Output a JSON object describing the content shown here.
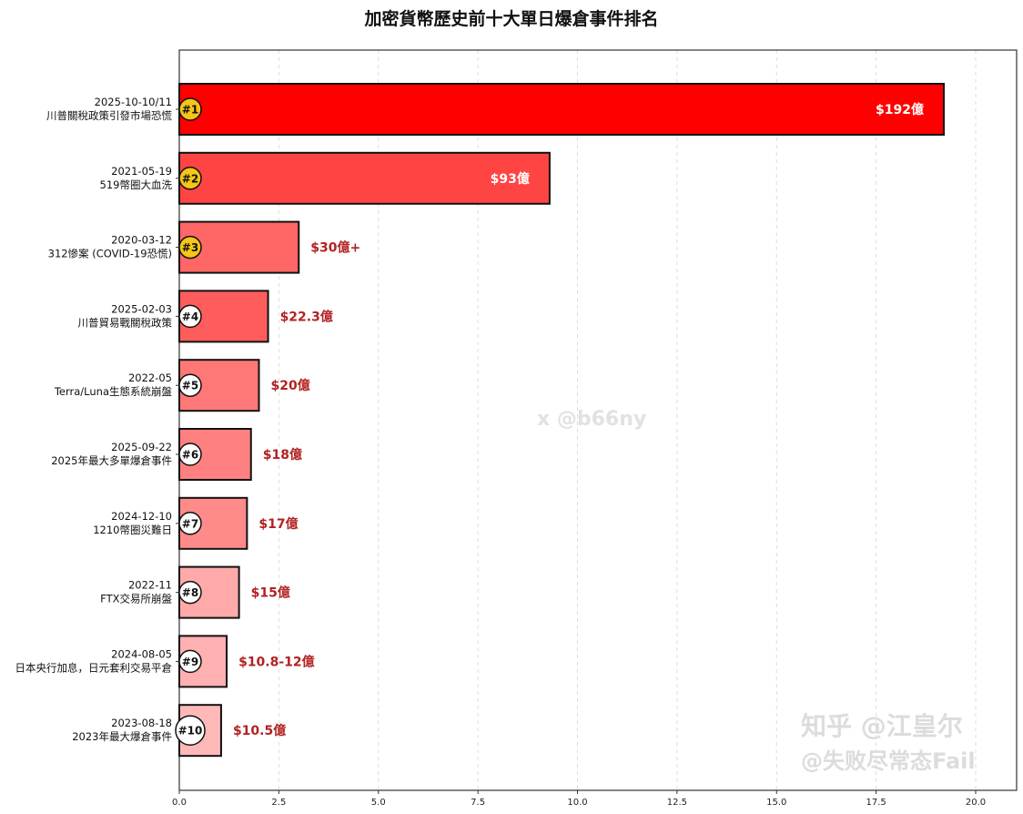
{
  "chart_data": {
    "type": "bar",
    "orientation": "horizontal",
    "title": "加密貨幣歷史前十大單日爆倉事件排名",
    "xlabel": "",
    "ylabel": "",
    "xlim": [
      0,
      21
    ],
    "x_ticks": [
      "0.0",
      "2.5",
      "5.0",
      "7.5",
      "10.0",
      "12.5",
      "15.0",
      "17.5",
      "20.0"
    ],
    "grid": "vertical dashed",
    "categories": [
      {
        "date": "2025-10-10/11",
        "event": "川普關稅政策引發市場恐慌",
        "rank": "#1"
      },
      {
        "date": "2021-05-19",
        "event": "519幣圈大血洗",
        "rank": "#2"
      },
      {
        "date": "2020-03-12",
        "event": "312慘案 (COVID-19恐慌)",
        "rank": "#3"
      },
      {
        "date": "2025-02-03",
        "event": "川普貿易戰關稅政策",
        "rank": "#4"
      },
      {
        "date": "2022-05",
        "event": "Terra/Luna生態系統崩盤",
        "rank": "#5"
      },
      {
        "date": "2025-09-22",
        "event": "2025年最大多單爆倉事件",
        "rank": "#6"
      },
      {
        "date": "2024-12-10",
        "event": "1210幣圈災難日",
        "rank": "#7"
      },
      {
        "date": "2022-11",
        "event": "FTX交易所崩盤",
        "rank": "#8"
      },
      {
        "date": "2024-08-05",
        "event": "日本央行加息，日元套利交易平倉",
        "rank": "#9"
      },
      {
        "date": "2023-08-18",
        "event": "2023年最大爆倉事件",
        "rank": "#10"
      }
    ],
    "values": [
      19.2,
      9.3,
      3.0,
      2.23,
      2.0,
      1.8,
      1.7,
      1.5,
      1.19,
      1.05
    ],
    "data_labels": [
      "$192億",
      "$93億",
      "$30億+",
      "$22.3億",
      "$20億",
      "$18億",
      "$17億",
      "$15億",
      "$10.8-12億",
      "$10.5億"
    ],
    "bar_colors": [
      "#ff0000",
      "#ff4444",
      "#ff6666",
      "#ff5c5c",
      "#ff7777",
      "#ff8080",
      "#ff8a8a",
      "#ffaaaa",
      "#ffb0b0",
      "#ffb8b8"
    ],
    "rank_badge_colors": {
      "top3": "#f5c518",
      "others": "#ffffff"
    },
    "label_color_outside": "#b22222",
    "label_color_inside": "#ffffff"
  },
  "watermarks": {
    "center": "x @b66ny",
    "zhihu": "知乎 @江皇尔",
    "weibo": "@失败尽常态Fail"
  }
}
